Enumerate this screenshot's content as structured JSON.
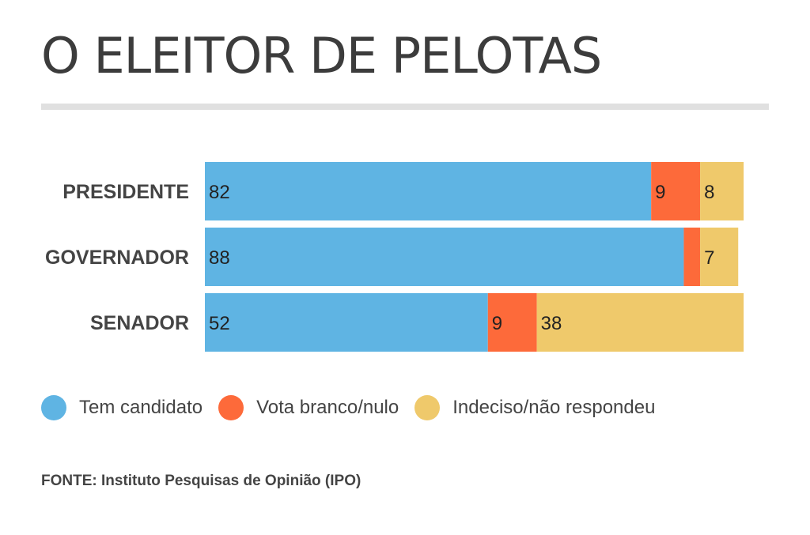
{
  "title": "O ELEITOR DE PELOTAS",
  "source": "FONTE: Instituto Pesquisas de Opinião (IPO)",
  "colors": {
    "tem": "#5fb4e3",
    "branco": "#fd6a3a",
    "indeciso": "#efc96b"
  },
  "chart_data": {
    "type": "bar",
    "orientation": "horizontal",
    "stacked": true,
    "categories": [
      "PRESIDENTE",
      "GOVERNADOR",
      "SENADOR"
    ],
    "series": [
      {
        "name": "Tem candidato",
        "values": [
          82,
          88,
          52
        ],
        "labels": [
          "82",
          "88",
          "52"
        ]
      },
      {
        "name": "Vota branco/nulo",
        "values": [
          9,
          3,
          9
        ],
        "labels": [
          "9",
          "",
          "9"
        ]
      },
      {
        "name": "Indeciso/não respondeu",
        "values": [
          8,
          7,
          38
        ],
        "labels": [
          "8",
          "7",
          "38"
        ]
      }
    ],
    "legend_position": "bottom"
  }
}
